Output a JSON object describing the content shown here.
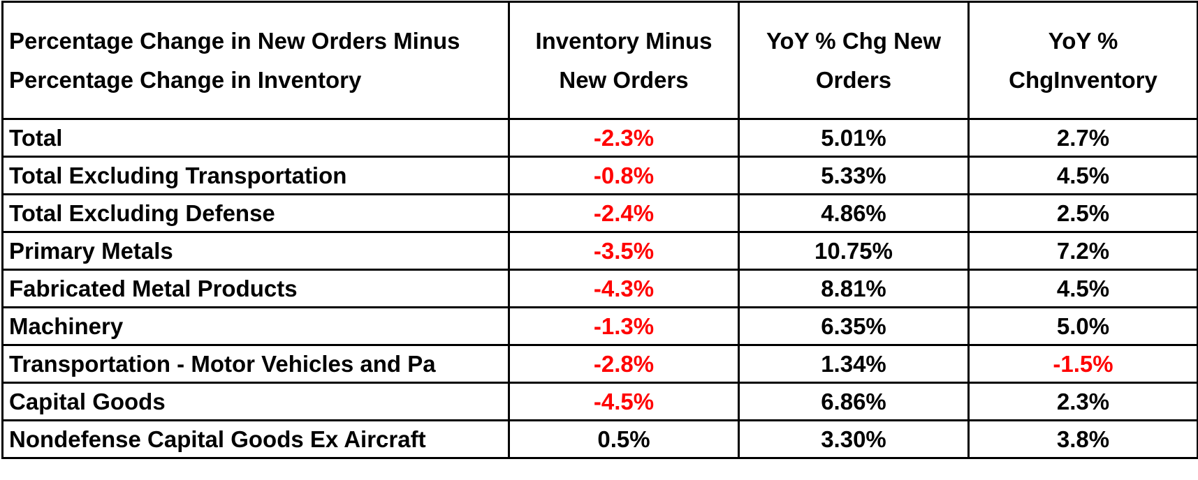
{
  "table": {
    "header": [
      "Percentage Change in New Orders Minus Percentage Change in Inventory",
      "Inventory Minus New Orders",
      "YoY % Chg New Orders",
      "YoY % ChgInventory"
    ],
    "rows": [
      [
        "Total",
        "-2.3%",
        "5.01%",
        "2.7%"
      ],
      [
        "Total Excluding Transportation",
        "-0.8%",
        "5.33%",
        "4.5%"
      ],
      [
        "Total Excluding Defense",
        "-2.4%",
        "4.86%",
        "2.5%"
      ],
      [
        "Primary Metals",
        "-3.5%",
        "10.75%",
        "7.2%"
      ],
      [
        "Fabricated Metal Products",
        "-4.3%",
        "8.81%",
        "4.5%"
      ],
      [
        "Machinery",
        "-1.3%",
        "6.35%",
        "5.0%"
      ],
      [
        "Transportation - Motor Vehicles and Pa",
        "-2.8%",
        "1.34%",
        "-1.5%"
      ],
      [
        "Capital Goods",
        "-4.5%",
        "6.86%",
        "2.3%"
      ],
      [
        "Nondefense Capital Goods Ex Aircraft",
        "0.5%",
        "3.30%",
        "3.8%"
      ]
    ]
  }
}
